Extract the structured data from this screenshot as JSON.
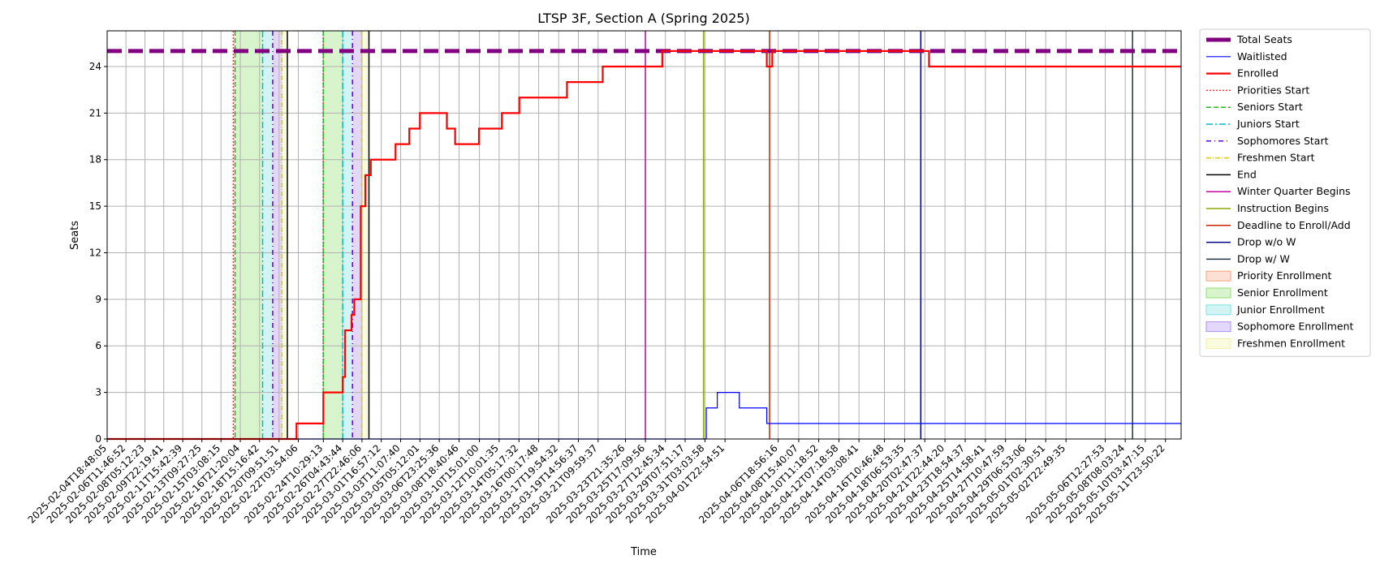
{
  "chart_data": {
    "type": "line",
    "title": "LTSP 3F, Section A (Spring 2025)",
    "xlabel": "Time",
    "ylabel": "Seats",
    "ylim": [
      0,
      26.3
    ],
    "yticks": [
      0,
      3,
      6,
      9,
      12,
      15,
      18,
      21,
      24
    ],
    "grid": true,
    "legend_position": "outside-right",
    "xrange": [
      "2025-02-04T18:48:05",
      "2025-05-13T10:00:00"
    ],
    "xtick_labels": [
      "2025-02-04T18:48:05",
      "2025-02-06T11:46:52",
      "2025-02-08T05:12:23",
      "2025-02-09T22:19:41",
      "2025-02-11T15:42:39",
      "2025-02-13T09:27:25",
      "2025-02-15T03:08:15",
      "2025-02-16T21:20:04",
      "2025-02-18T15:16:42",
      "2025-02-20T09:51:51",
      "2025-02-22T03:54:06",
      "2025-02-24T10:29:13",
      "2025-02-26T04:43:44",
      "2025-02-27T22:46:06",
      "2025-03-01T16:57:12",
      "2025-03-03T11:07:40",
      "2025-03-05T05:12:01",
      "2025-03-06T23:25:36",
      "2025-03-08T18:40:46",
      "2025-03-10T15:01:00",
      "2025-03-12T10:01:35",
      "2025-03-14T05:17:32",
      "2025-03-16T00:17:48",
      "2025-03-17T19:54:32",
      "2025-03-19T14:56:37",
      "2025-03-21T09:59:37",
      "2025-03-23T21:35:26",
      "2025-03-25T17:09:56",
      "2025-03-27T12:45:34",
      "2025-03-29T07:51:17",
      "2025-03-31T03:03:58",
      "2025-04-01T22:54:51",
      "2025-04-06T18:56:16",
      "2025-04-08T15:40:07",
      "2025-04-10T11:18:52",
      "2025-04-12T07:18:58",
      "2025-04-14T03:08:41",
      "2025-04-16T10:46:48",
      "2025-04-18T06:53:35",
      "2025-04-20T02:47:37",
      "2025-04-21T22:44:20",
      "2025-04-23T18:54:37",
      "2025-04-25T14:58:41",
      "2025-04-27T10:47:59",
      "2025-04-29T06:53:06",
      "2025-05-01T02:30:51",
      "2025-05-02T22:49:35",
      "2025-05-06T12:27:53",
      "2025-05-08T08:03:24",
      "2025-05-10T03:47:15",
      "2025-05-11T23:50:22"
    ],
    "series": [
      {
        "name": "Total Seats",
        "color": "#800080",
        "style": "thick-dashed",
        "points": [
          [
            "2025-02-04T18:48:05",
            25
          ],
          [
            "2025-05-13T10:00:00",
            25
          ]
        ]
      },
      {
        "name": "Waitlisted",
        "color": "#0000ff",
        "style": "step",
        "points": [
          [
            "2025-02-04T18:48:05",
            0
          ],
          [
            "2025-03-31T06:00:00",
            2
          ],
          [
            "2025-04-01T06:00:00",
            3
          ],
          [
            "2025-04-03T06:00:00",
            2
          ],
          [
            "2025-04-05T18:00:00",
            1
          ],
          [
            "2025-05-13T10:00:00",
            1
          ]
        ]
      },
      {
        "name": "Enrolled",
        "color": "#ff0000",
        "style": "step",
        "points": [
          [
            "2025-02-04T18:48:05",
            0
          ],
          [
            "2025-02-22T00:00:00",
            1
          ],
          [
            "2025-02-24T10:29:13",
            3
          ],
          [
            "2025-02-26T04:43:44",
            4
          ],
          [
            "2025-02-26T10:00:00",
            7
          ],
          [
            "2025-02-27T00:00:00",
            8
          ],
          [
            "2025-02-27T06:00:00",
            9
          ],
          [
            "2025-02-27T20:00:00",
            15
          ],
          [
            "2025-02-28T06:00:00",
            17
          ],
          [
            "2025-02-28T18:00:00",
            18
          ],
          [
            "2025-03-03T00:00:00",
            19
          ],
          [
            "2025-03-04T06:00:00",
            20
          ],
          [
            "2025-03-05T05:12:01",
            21
          ],
          [
            "2025-03-07T16:00:00",
            20
          ],
          [
            "2025-03-08T10:00:00",
            19
          ],
          [
            "2025-03-10T14:00:00",
            20
          ],
          [
            "2025-03-12T16:00:00",
            21
          ],
          [
            "2025-03-14T06:00:00",
            22
          ],
          [
            "2025-03-18T14:00:00",
            23
          ],
          [
            "2025-03-21T20:00:00",
            24
          ],
          [
            "2025-03-27T06:00:00",
            25
          ],
          [
            "2025-04-05T18:00:00",
            24
          ],
          [
            "2025-04-06T06:00:00",
            25
          ],
          [
            "2025-04-20T12:00:00",
            24
          ],
          [
            "2025-05-13T10:00:00",
            24
          ]
        ]
      }
    ],
    "events": [
      {
        "name": "Priorities Start",
        "color": "#ff3333",
        "dash": "2,2",
        "times": [
          "2025-02-16T06:00:00",
          "2025-02-24T10:00:00"
        ]
      },
      {
        "name": "Seniors Start",
        "color": "#22bb22",
        "dash": "6,3",
        "times": [
          "2025-02-16T10:00:00",
          "2025-02-24T10:29:13"
        ]
      },
      {
        "name": "Juniors Start",
        "color": "#00bbcc",
        "dash": "8,3,2,3",
        "times": [
          "2025-02-18T22:00:00",
          "2025-02-26T04:43:44"
        ]
      },
      {
        "name": "Sophomores Start",
        "color": "#6600cc",
        "dash": "6,4,1,4",
        "times": [
          "2025-02-19T20:00:00",
          "2025-02-27T02:00:00"
        ]
      },
      {
        "name": "Freshmen Start",
        "color": "#ddcc00",
        "dash": "6,2,1,2",
        "times": [
          "2025-02-20T16:00:00",
          "2025-02-27T22:00:00"
        ]
      },
      {
        "name": "End",
        "color": "#000000",
        "dash": "",
        "times": [
          "2025-02-21T04:00:00",
          "2025-02-28T14:00:00"
        ]
      },
      {
        "name": "Winter Quarter Begins",
        "color": "#cc00aa",
        "dash": "",
        "times": [
          "2025-03-25T17:09:56"
        ]
      },
      {
        "name": "Instruction Begins",
        "color": "#88aa00",
        "dash": "",
        "times": [
          "2025-03-31T00:00:00"
        ]
      },
      {
        "name": "Deadline to Enroll/Add",
        "color": "#cc2200",
        "dash": "",
        "times": [
          "2025-04-06T00:00:00"
        ]
      },
      {
        "name": "Drop w/o W",
        "color": "#000088",
        "dash": "",
        "times": [
          "2025-04-19T18:00:00"
        ]
      },
      {
        "name": "Drop w/ W",
        "color": "#223344",
        "dash": "",
        "times": [
          "2025-05-09T00:00:00"
        ]
      }
    ],
    "spans": [
      {
        "name": "Priority Enrollment",
        "color": "#f4a582",
        "ranges": [
          [
            "2025-02-16T06:00:00",
            "2025-02-16T10:00:00"
          ],
          [
            "2025-02-24T10:00:00",
            "2025-02-24T10:29:13"
          ]
        ]
      },
      {
        "name": "Senior Enrollment",
        "color": "#90e070",
        "ranges": [
          [
            "2025-02-16T10:00:00",
            "2025-02-18T22:00:00"
          ],
          [
            "2025-02-24T10:29:13",
            "2025-02-26T04:43:44"
          ]
        ]
      },
      {
        "name": "Junior Enrollment",
        "color": "#80e0e0",
        "ranges": [
          [
            "2025-02-18T22:00:00",
            "2025-02-19T20:00:00"
          ],
          [
            "2025-02-26T04:43:44",
            "2025-02-27T02:00:00"
          ]
        ]
      },
      {
        "name": "Sophomore Enrollment",
        "color": "#b090f0",
        "ranges": [
          [
            "2025-02-19T20:00:00",
            "2025-02-20T16:00:00"
          ],
          [
            "2025-02-27T02:00:00",
            "2025-02-27T22:00:00"
          ]
        ]
      },
      {
        "name": "Freshmen Enrollment",
        "color": "#f0f0a0",
        "ranges": [
          [
            "2025-02-20T16:00:00",
            "2025-02-21T04:00:00"
          ],
          [
            "2025-02-27T22:00:00",
            "2025-02-28T14:00:00"
          ]
        ]
      }
    ]
  }
}
